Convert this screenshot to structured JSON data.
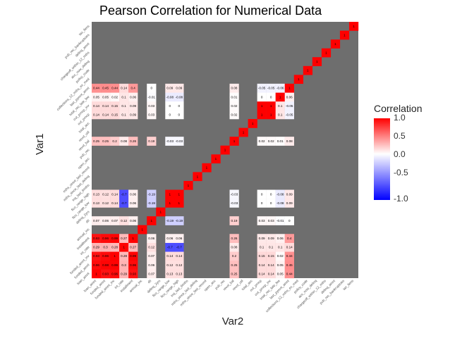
{
  "chart_data": {
    "type": "heatmap",
    "title": "Pearson Correlation for Numerical Data",
    "xlabel": "Var2",
    "ylabel": "Var1",
    "legend": {
      "title": "Correlation",
      "ticks": [
        "1.0",
        "0.5",
        "0.0",
        "-0.5",
        "-1.0"
      ],
      "range": [
        -1,
        1
      ],
      "position": "right"
    },
    "variables": [
      "loan_amnt",
      "funded_amnt",
      "funded_amnt_inv",
      "int_rate",
      "installment",
      "annual_inc",
      "dti",
      "delinq_2yrs",
      "fico_range_low",
      "fico_range_high",
      "inq_last_6mths",
      "mths_since_last_delinq",
      "mths_since_last_record",
      "open_acc",
      "pub_rec",
      "revol_bal",
      "revol_util",
      "total_acc",
      "out_prncp",
      "out_prncp_inv",
      "total_rec_late_fee",
      "last_pymnt_amnt",
      "collections_12_mths_ex_med",
      "policy_code",
      "acc_now_delinq",
      "chargeoff_within_12_mths",
      "delinq_amnt",
      "pub_rec_bankruptcies",
      "tax_liens"
    ],
    "cells": [
      [
        0,
        0,
        1
      ],
      [
        1,
        0,
        0.93
      ],
      [
        2,
        0,
        0.96
      ],
      [
        3,
        0,
        0.29
      ],
      [
        4,
        0,
        0.93
      ],
      [
        6,
        0,
        0.07
      ],
      [
        8,
        0,
        0.13
      ],
      [
        9,
        0,
        0.13
      ],
      [
        15,
        0,
        0.25
      ],
      [
        18,
        0,
        0.14
      ],
      [
        19,
        0,
        0.14
      ],
      [
        20,
        0,
        0.05
      ],
      [
        21,
        0,
        0.44
      ],
      [
        0,
        1,
        0.96
      ],
      [
        1,
        1,
        0.98
      ],
      [
        2,
        1,
        0.99
      ],
      [
        3,
        1,
        0.3
      ],
      [
        4,
        1,
        0.96
      ],
      [
        6,
        1,
        0.06
      ],
      [
        8,
        1,
        0.12
      ],
      [
        9,
        1,
        0.12
      ],
      [
        15,
        1,
        0.25
      ],
      [
        18,
        1,
        0.14
      ],
      [
        19,
        1,
        0.14
      ],
      [
        20,
        1,
        0.05
      ],
      [
        21,
        1,
        0.45
      ],
      [
        0,
        2,
        0.93
      ],
      [
        1,
        2,
        0.96
      ],
      [
        2,
        2,
        1
      ],
      [
        3,
        2,
        0.28
      ],
      [
        4,
        2,
        0.99
      ],
      [
        6,
        2,
        0.07
      ],
      [
        8,
        2,
        0.14
      ],
      [
        9,
        2,
        0.14
      ],
      [
        15,
        2,
        0.2
      ],
      [
        18,
        2,
        0.15
      ],
      [
        19,
        2,
        0.15
      ],
      [
        20,
        2,
        0.02
      ],
      [
        21,
        2,
        0.44
      ],
      [
        0,
        3,
        0.29
      ],
      [
        1,
        3,
        0.3
      ],
      [
        2,
        3,
        0.28
      ],
      [
        3,
        3,
        1
      ],
      [
        4,
        3,
        0.27
      ],
      [
        6,
        3,
        0.12
      ],
      [
        8,
        3,
        -0.7
      ],
      [
        9,
        3,
        -0.7
      ],
      [
        15,
        3,
        0.08
      ],
      [
        18,
        3,
        0.1
      ],
      [
        19,
        3,
        0.1
      ],
      [
        20,
        3,
        0.1
      ],
      [
        21,
        3,
        0.14
      ],
      [
        0,
        4,
        0.93
      ],
      [
        1,
        4,
        0.96
      ],
      [
        2,
        4,
        0.99
      ],
      [
        3,
        4,
        0.27
      ],
      [
        4,
        4,
        1
      ],
      [
        6,
        4,
        0.06
      ],
      [
        8,
        4,
        0.06
      ],
      [
        9,
        4,
        0.06
      ],
      [
        15,
        4,
        0.26
      ],
      [
        18,
        4,
        0.09
      ],
      [
        19,
        4,
        0.09
      ],
      [
        20,
        4,
        0.06
      ],
      [
        21,
        4,
        0.4
      ],
      [
        5,
        5,
        1
      ],
      [
        0,
        6,
        0.07
      ],
      [
        1,
        6,
        0.06
      ],
      [
        2,
        6,
        0.07
      ],
      [
        3,
        6,
        0.12
      ],
      [
        4,
        6,
        0.06
      ],
      [
        6,
        6,
        1
      ],
      [
        8,
        6,
        -0.19
      ],
      [
        9,
        6,
        -0.19
      ],
      [
        15,
        6,
        0.19
      ],
      [
        18,
        6,
        0.03
      ],
      [
        19,
        6,
        0.03
      ],
      [
        20,
        6,
        -0.01
      ],
      [
        21,
        6,
        0
      ],
      [
        7,
        7,
        1
      ],
      [
        0,
        8,
        0.13
      ],
      [
        1,
        8,
        0.12
      ],
      [
        2,
        8,
        0.14
      ],
      [
        3,
        8,
        -0.7
      ],
      [
        4,
        8,
        0.06
      ],
      [
        6,
        8,
        -0.19
      ],
      [
        8,
        8,
        1
      ],
      [
        9,
        8,
        1
      ],
      [
        15,
        8,
        -0.03
      ],
      [
        18,
        8,
        0
      ],
      [
        19,
        8,
        0
      ],
      [
        20,
        8,
        -0.08
      ],
      [
        21,
        8,
        0.09
      ],
      [
        0,
        9,
        0.13
      ],
      [
        1,
        9,
        0.12
      ],
      [
        2,
        9,
        0.14
      ],
      [
        3,
        9,
        -0.7
      ],
      [
        4,
        9,
        0.06
      ],
      [
        6,
        9,
        -0.19
      ],
      [
        8,
        9,
        1
      ],
      [
        9,
        9,
        1
      ],
      [
        15,
        9,
        -0.03
      ],
      [
        18,
        9,
        0
      ],
      [
        19,
        9,
        0
      ],
      [
        20,
        9,
        -0.08
      ],
      [
        21,
        9,
        0.09
      ],
      [
        10,
        10,
        1
      ],
      [
        11,
        11,
        1
      ],
      [
        12,
        12,
        1
      ],
      [
        13,
        13,
        1
      ],
      [
        14,
        14,
        1
      ],
      [
        0,
        15,
        0.25
      ],
      [
        1,
        15,
        0.25
      ],
      [
        2,
        15,
        0.2
      ],
      [
        3,
        15,
        0.08
      ],
      [
        4,
        15,
        0.26
      ],
      [
        6,
        15,
        0.19
      ],
      [
        8,
        15,
        -0.03
      ],
      [
        9,
        15,
        -0.03
      ],
      [
        15,
        15,
        1
      ],
      [
        18,
        15,
        0.02
      ],
      [
        19,
        15,
        0.02
      ],
      [
        20,
        15,
        0.01
      ],
      [
        21,
        15,
        0.08
      ],
      [
        16,
        16,
        1
      ],
      [
        17,
        17,
        1
      ],
      [
        0,
        18,
        0.14
      ],
      [
        1,
        18,
        0.14
      ],
      [
        2,
        18,
        0.15
      ],
      [
        3,
        18,
        0.1
      ],
      [
        4,
        18,
        0.09
      ],
      [
        6,
        18,
        0.03
      ],
      [
        8,
        18,
        0
      ],
      [
        9,
        18,
        0
      ],
      [
        15,
        18,
        0.02
      ],
      [
        18,
        18,
        1
      ],
      [
        19,
        18,
        1
      ],
      [
        20,
        18,
        0.1
      ],
      [
        21,
        18,
        -0.05
      ],
      [
        0,
        19,
        0.14
      ],
      [
        1,
        19,
        0.14
      ],
      [
        2,
        19,
        0.15
      ],
      [
        3,
        19,
        0.1
      ],
      [
        4,
        19,
        0.09
      ],
      [
        6,
        19,
        0.03
      ],
      [
        8,
        19,
        0
      ],
      [
        9,
        19,
        0
      ],
      [
        15,
        19,
        0.02
      ],
      [
        18,
        19,
        1
      ],
      [
        19,
        19,
        1
      ],
      [
        20,
        19,
        0.1
      ],
      [
        21,
        19,
        -0.05
      ],
      [
        0,
        20,
        0.05
      ],
      [
        1,
        20,
        0.05
      ],
      [
        2,
        20,
        0.02
      ],
      [
        3,
        20,
        0.1
      ],
      [
        4,
        20,
        0.06
      ],
      [
        6,
        20,
        -0.01
      ],
      [
        8,
        20,
        -0.08
      ],
      [
        9,
        20,
        -0.08
      ],
      [
        15,
        20,
        0.01
      ],
      [
        18,
        20,
        0
      ],
      [
        19,
        20,
        0
      ],
      [
        20,
        20,
        1
      ],
      [
        21,
        20,
        0.06
      ],
      [
        0,
        21,
        0.44
      ],
      [
        1,
        21,
        0.45
      ],
      [
        2,
        21,
        0.44
      ],
      [
        3,
        21,
        0.14
      ],
      [
        4,
        21,
        0.4
      ],
      [
        6,
        21,
        0
      ],
      [
        8,
        21,
        0.09
      ],
      [
        9,
        21,
        0.09
      ],
      [
        15,
        21,
        0.08
      ],
      [
        18,
        21,
        -0.05
      ],
      [
        19,
        21,
        -0.05
      ],
      [
        20,
        21,
        -0.06
      ],
      [
        21,
        21,
        1
      ],
      [
        22,
        22,
        1
      ],
      [
        23,
        23,
        1
      ],
      [
        24,
        24,
        1
      ],
      [
        25,
        25,
        1
      ],
      [
        26,
        26,
        1
      ],
      [
        27,
        27,
        1
      ],
      [
        28,
        28,
        1
      ]
    ],
    "na_color": "#6e6e6e",
    "high_color": "#ff0000",
    "mid_color": "#ffffff",
    "low_color": "#0000ff"
  }
}
